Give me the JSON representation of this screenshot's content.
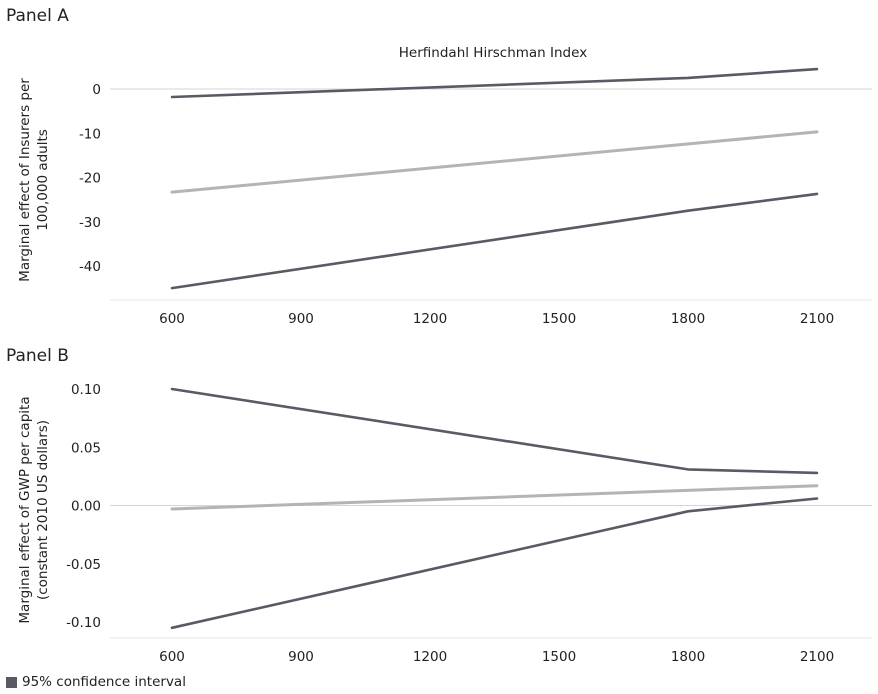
{
  "chart_data": [
    {
      "panel": "Panel A",
      "type": "line",
      "title": "Herfindahl Hirschman Index",
      "ylabel_lines": [
        "Marginal effect of Insurers per",
        "100,000 adults"
      ],
      "x_ticks": [
        "600",
        "900",
        "1200",
        "1500",
        "1800",
        "2100"
      ],
      "y_ticks": [
        "0",
        "-10",
        "-20",
        "-30",
        "-40"
      ],
      "x_range": [
        600,
        2100
      ],
      "ylim": [
        -46.5,
        6
      ],
      "grid": false,
      "series": [
        {
          "role": "upper",
          "color": "#5a5a64",
          "x": [
            600,
            1800,
            2100
          ],
          "y": [
            -1.8,
            2.5,
            4.5
          ]
        },
        {
          "role": "estimate",
          "color": "#b4b4b4",
          "x": [
            600,
            2100
          ],
          "y": [
            -23.3,
            -9.7
          ]
        },
        {
          "role": "lower",
          "color": "#5a5a64",
          "x": [
            600,
            1800,
            2100
          ],
          "y": [
            -45.0,
            -27.5,
            -23.7
          ]
        }
      ]
    },
    {
      "panel": "Panel B",
      "type": "line",
      "title": "",
      "ylabel_lines": [
        "Marginal effect of GWP per capita",
        "(constant 2010 US dollars)"
      ],
      "x_ticks": [
        "600",
        "900",
        "1200",
        "1500",
        "1800",
        "2100"
      ],
      "y_ticks": [
        "0.10",
        "0.05",
        "0.00",
        "-0.05",
        "-0.10"
      ],
      "x_range": [
        600,
        2100
      ],
      "ylim": [
        -0.11,
        0.11
      ],
      "grid": false,
      "series": [
        {
          "role": "upper",
          "color": "#5a5a64",
          "x": [
            600,
            1800,
            2100
          ],
          "y": [
            0.1,
            0.031,
            0.028
          ]
        },
        {
          "role": "estimate",
          "color": "#b4b4b4",
          "x": [
            600,
            2100
          ],
          "y": [
            -0.003,
            0.017
          ]
        },
        {
          "role": "lower",
          "color": "#5a5a64",
          "x": [
            600,
            1800,
            2100
          ],
          "y": [
            -0.105,
            -0.005,
            0.006
          ]
        }
      ]
    }
  ],
  "legend": {
    "label": "95% confidence interval",
    "color": "#5a5a64"
  }
}
